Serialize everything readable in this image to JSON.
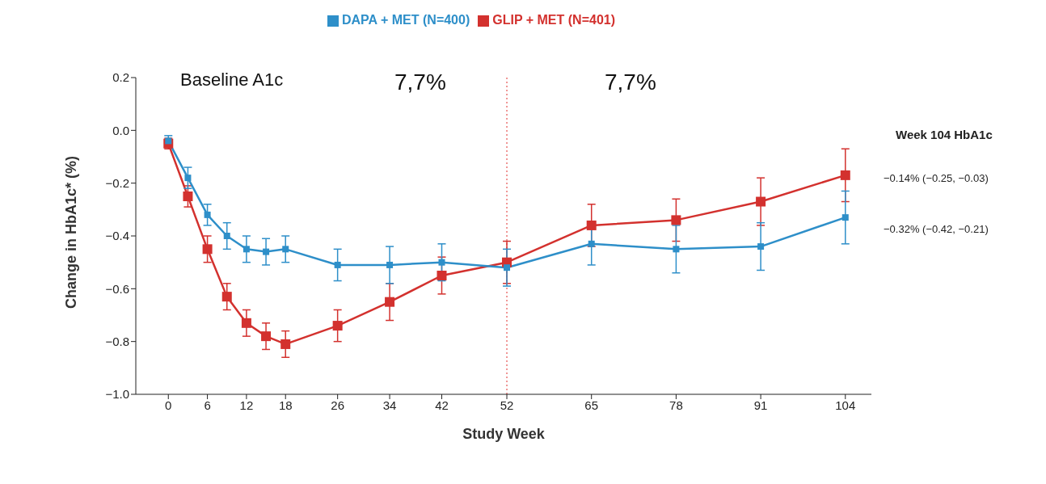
{
  "chart_data": {
    "type": "line",
    "xlabel": "Study Week",
    "ylabel": "Change in HbA1c* (%)",
    "xlim": [
      -5,
      108
    ],
    "xticks": [
      0,
      6,
      12,
      18,
      26,
      34,
      42,
      52,
      65,
      78,
      91,
      104
    ],
    "ylim": [
      -1.0,
      0.2
    ],
    "yticks": [
      {
        "value": -1.0,
        "label": "−1.0"
      },
      {
        "value": -0.8,
        "label": "−0.8"
      },
      {
        "value": -0.6,
        "label": "−0.6"
      },
      {
        "value": -0.4,
        "label": "−0.4"
      },
      {
        "value": -0.2,
        "label": "−0.2"
      },
      {
        "value": 0,
        "label": "0.0"
      },
      {
        "value": 0.2,
        "label": "0.2"
      }
    ],
    "x": [
      0,
      3,
      6,
      9,
      12,
      15,
      18,
      26,
      34,
      42,
      52,
      65,
      78,
      91,
      104
    ],
    "series": [
      {
        "name": "DAPA + MET (N=400)",
        "color": "#2e8fc9",
        "values": [
          -0.04,
          -0.18,
          -0.32,
          -0.4,
          -0.45,
          -0.46,
          -0.45,
          -0.51,
          -0.51,
          -0.5,
          -0.52,
          -0.43,
          -0.45,
          -0.44,
          -0.33
        ],
        "errors": [
          0.02,
          0.04,
          0.04,
          0.05,
          0.05,
          0.05,
          0.05,
          0.06,
          0.07,
          0.07,
          0.07,
          0.08,
          0.09,
          0.09,
          0.1
        ]
      },
      {
        "name": "GLIP + MET (N=401)",
        "color": "#d3312e",
        "values": [
          -0.05,
          -0.25,
          -0.45,
          -0.63,
          -0.73,
          -0.78,
          -0.81,
          -0.74,
          -0.65,
          -0.55,
          -0.5,
          -0.36,
          -0.34,
          -0.27,
          -0.17
        ],
        "errors": [
          0.02,
          0.04,
          0.05,
          0.05,
          0.05,
          0.05,
          0.05,
          0.06,
          0.07,
          0.07,
          0.08,
          0.08,
          0.08,
          0.09,
          0.1
        ]
      }
    ],
    "ref_lines": [
      {
        "axis": "x",
        "value": 52,
        "color": "#e0302e",
        "line_style": "dotted"
      }
    ],
    "annotations": [
      "Baseline A1c",
      "7,7%",
      "7,7%",
      "Week 104 HbA1c",
      "−0.14% (−0.25, −0.03)",
      "−0.32% (−0.42, −0.21)"
    ],
    "legend": "top",
    "grid": false,
    "marker": "square",
    "line_style": "solid"
  }
}
